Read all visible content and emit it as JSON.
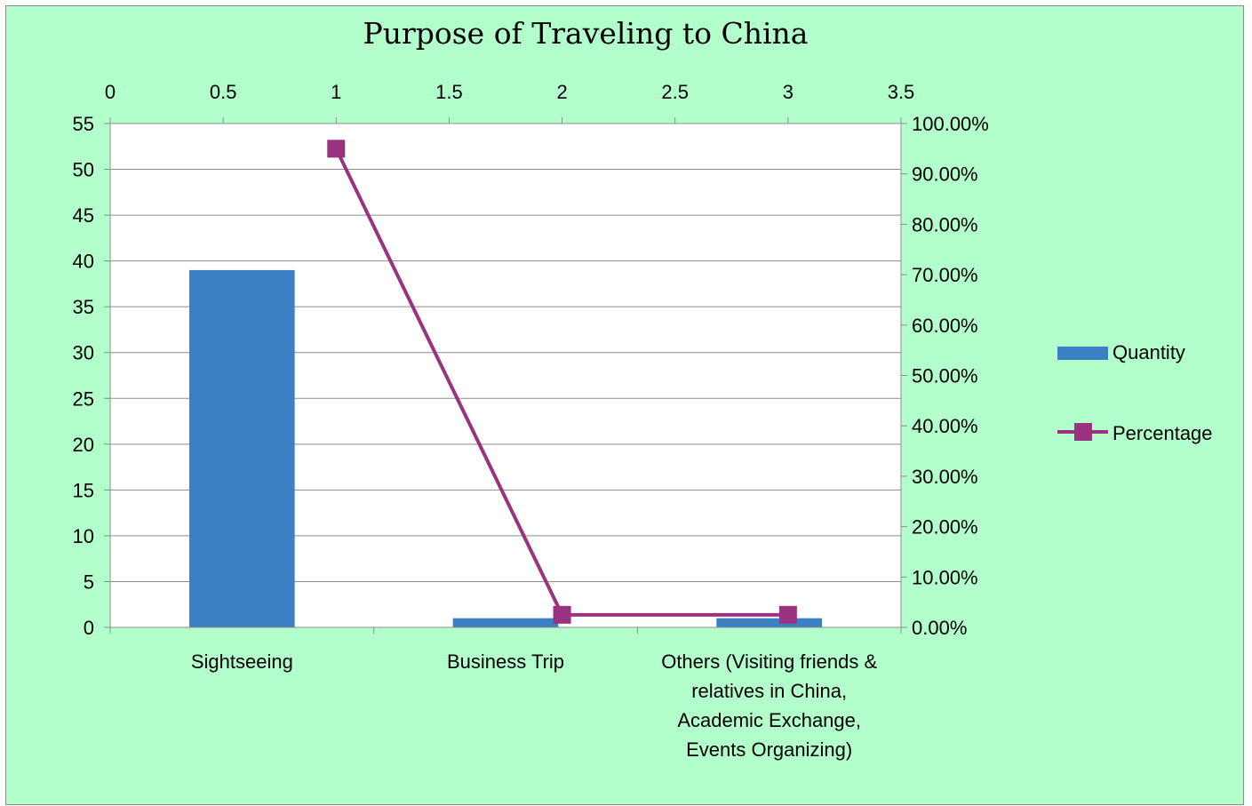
{
  "chart_data": {
    "type": "bar",
    "title": "Purpose of Traveling to China",
    "categories": [
      [
        "Sightseeing"
      ],
      [
        "Business Trip"
      ],
      [
        "Others (Visiting friends &",
        "relatives in China,",
        "Academic Exchange,",
        "Events Organizing)"
      ]
    ],
    "series": [
      {
        "name": "Quantity",
        "type": "bar",
        "axis": "primary",
        "color": "#3b7fc4",
        "values": [
          39,
          1,
          1
        ]
      },
      {
        "name": "Percentage",
        "type": "line",
        "axis": "secondary",
        "color": "#993380",
        "x": [
          1,
          2,
          3
        ],
        "values": [
          0.95,
          0.025,
          0.025
        ]
      }
    ],
    "y_primary": {
      "ylim": [
        0,
        55
      ],
      "ticks": [
        "0",
        "5",
        "10",
        "15",
        "20",
        "25",
        "30",
        "35",
        "40",
        "45",
        "50",
        "55"
      ]
    },
    "y_secondary": {
      "ylim": [
        0,
        1
      ],
      "ticks": [
        "0.00%",
        "10.00%",
        "20.00%",
        "30.00%",
        "40.00%",
        "50.00%",
        "60.00%",
        "70.00%",
        "80.00%",
        "90.00%",
        "100.00%"
      ]
    },
    "x_secondary": {
      "xlim": [
        0,
        3.5
      ],
      "ticks": [
        "0",
        "0.5",
        "1",
        "1.5",
        "2",
        "2.5",
        "3",
        "3.5"
      ]
    },
    "grid": true,
    "legend": "right"
  }
}
